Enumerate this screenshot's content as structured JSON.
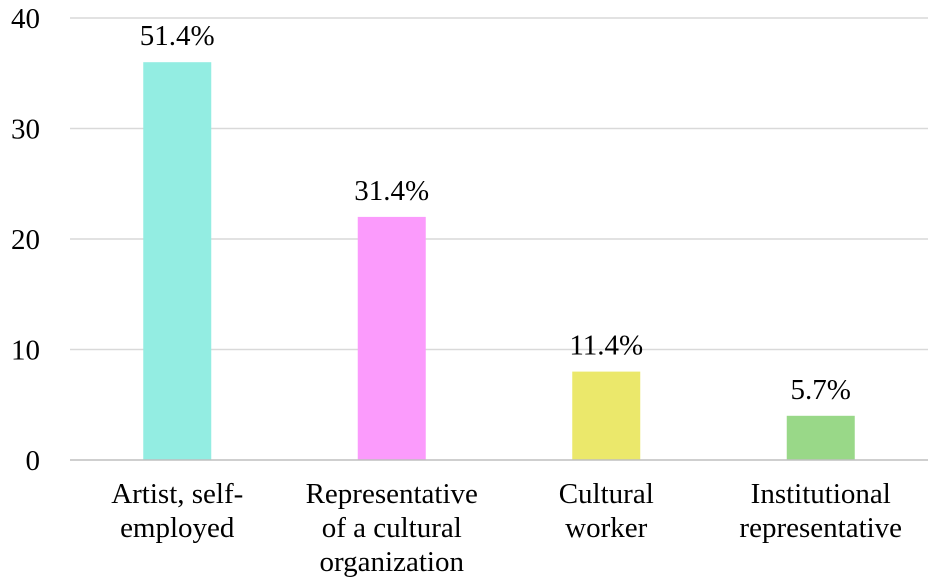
{
  "chart_data": {
    "type": "bar",
    "title": "",
    "xlabel": "",
    "ylabel": "",
    "ylim": [
      0,
      40
    ],
    "yticks": [
      "0",
      "10",
      "20",
      "30",
      "40"
    ],
    "grid": true,
    "legend": "none",
    "categories": [
      [
        "Artist, self-",
        "employed"
      ],
      [
        "Representative",
        "of a cultural",
        "organization"
      ],
      [
        "Cultural",
        "worker"
      ],
      [
        "Institutional",
        "representative"
      ]
    ],
    "values": [
      36,
      22,
      8,
      4
    ],
    "data_labels": [
      "51.4%",
      "31.4%",
      "11.4%",
      "5.7%"
    ],
    "colors": [
      "#93ede2",
      "#fb9bfc",
      "#ebe86b",
      "#99d888"
    ]
  }
}
